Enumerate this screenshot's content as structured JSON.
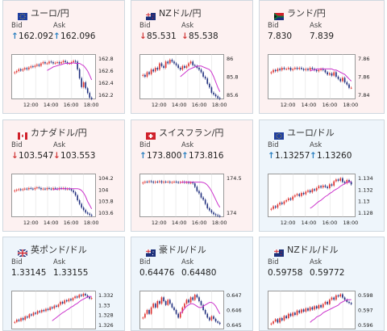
{
  "cards": [
    {
      "name": "eur-jpy",
      "title": "ユーロ/円",
      "flag": "eu",
      "bid": "162.092",
      "ask": "162.096",
      "bid_dir": "up",
      "ask_dir": "up",
      "bg": "#fdf1f1",
      "chart": {
        "ylim": [
          162.1,
          162.85
        ],
        "yticks": [
          "162.8",
          "162.6",
          "162.4",
          "162.2"
        ],
        "xticks": [
          "12:00",
          "14:00",
          "16:00",
          "18:00"
        ],
        "closes": [
          162.55,
          162.57,
          162.6,
          162.58,
          162.6,
          162.62,
          162.6,
          162.63,
          162.65,
          162.64,
          162.66,
          162.68,
          162.66,
          162.7,
          162.72,
          162.7,
          162.7,
          162.73,
          162.72,
          162.7,
          162.71,
          162.72,
          162.7,
          162.72,
          162.74,
          162.72,
          162.7,
          162.7,
          162.72,
          162.74,
          162.73,
          162.6,
          162.45,
          162.3,
          162.38,
          162.28,
          162.2,
          162.12,
          162.1
        ],
        "ma": [
          162.58,
          162.6,
          162.62,
          162.64,
          162.65,
          162.66,
          162.67,
          162.68,
          162.69,
          162.7,
          162.7,
          162.7,
          162.7,
          162.71,
          162.7,
          162.7,
          162.7,
          162.68,
          162.66,
          162.62,
          162.57,
          162.5,
          162.42
        ]
      }
    },
    {
      "name": "nzd-jpy",
      "title": "NZドル/円",
      "flag": "nz",
      "bid": "85.531",
      "ask": "85.538",
      "bid_dir": "down",
      "ask_dir": "down",
      "bg": "#fdf1f1",
      "chart": {
        "ylim": [
          85.55,
          86.05
        ],
        "yticks": [
          "86",
          "85.8",
          "85.6"
        ],
        "xticks": [
          "12:00",
          "14:00",
          "16:00",
          "18:00"
        ],
        "closes": [
          85.82,
          85.8,
          85.85,
          85.83,
          85.88,
          85.86,
          85.9,
          85.88,
          85.95,
          85.92,
          85.9,
          85.97,
          85.95,
          85.99,
          85.97,
          85.95,
          85.93,
          85.9,
          85.88,
          85.92,
          85.9,
          85.92,
          85.95,
          85.97,
          85.93,
          85.92,
          85.9,
          85.88,
          85.85,
          85.8,
          85.78,
          85.72,
          85.68,
          85.62,
          85.6,
          85.58,
          85.56,
          85.55
        ],
        "ma": [
          85.8,
          85.82,
          85.84,
          85.86,
          85.88,
          85.89,
          85.9,
          85.91,
          85.92,
          85.92,
          85.92,
          85.91,
          85.9,
          85.89,
          85.88,
          85.85,
          85.8,
          85.74,
          85.68,
          85.63
        ]
      }
    },
    {
      "name": "zar-jpy",
      "title": "ランド/円",
      "flag": "za",
      "bid": "7.830",
      "ask": "7.839",
      "bid_dir": "none",
      "ask_dir": "none",
      "bg": "#fdf1f1",
      "chart": {
        "ylim": [
          7.83,
          7.87
        ],
        "yticks": [
          "7.86",
          "7.86",
          "7.84"
        ],
        "xticks": [
          "12:00",
          "14:00",
          "16:00",
          "18:00"
        ],
        "closes": [
          7.854,
          7.856,
          7.855,
          7.857,
          7.856,
          7.858,
          7.857,
          7.857,
          7.858,
          7.856,
          7.857,
          7.858,
          7.857,
          7.858,
          7.857,
          7.856,
          7.857,
          7.856,
          7.858,
          7.857,
          7.856,
          7.855,
          7.856,
          7.857,
          7.856,
          7.854,
          7.852,
          7.853,
          7.851,
          7.854,
          7.85,
          7.848,
          7.846,
          7.849,
          7.845,
          7.843,
          7.84,
          7.84
        ],
        "ma": [
          7.855,
          7.856,
          7.856,
          7.857,
          7.857,
          7.857,
          7.857,
          7.857,
          7.857,
          7.857,
          7.857,
          7.856,
          7.856,
          7.855,
          7.854,
          7.853,
          7.852,
          7.85,
          7.848,
          7.846
        ]
      }
    },
    {
      "name": "cad-jpy",
      "title": "カナダドル/円",
      "flag": "ca",
      "bid": "103.547",
      "ask": "103.553",
      "bid_dir": "down",
      "ask_dir": "down",
      "bg": "#fdf1f1",
      "chart": {
        "ylim": [
          103.55,
          104.25
        ],
        "yticks": [
          "104.2",
          "104",
          "103.8",
          "103.6"
        ],
        "xticks": [
          "12:00",
          "14:00",
          "16:00",
          "18:00"
        ],
        "closes": [
          103.98,
          103.99,
          104.0,
          103.99,
          104.0,
          104.01,
          104.0,
          104.02,
          104.01,
          104.0,
          104.02,
          104.03,
          104.02,
          104.0,
          104.01,
          104.0,
          104.02,
          104.01,
          104.0,
          104.02,
          104.01,
          104.0,
          104.02,
          104.01,
          104.02,
          104.0,
          104.01,
          104.0,
          103.98,
          103.95,
          103.9,
          103.82,
          103.76,
          103.7,
          103.66,
          103.62,
          103.6,
          103.58,
          103.57
        ],
        "ma": [
          103.99,
          104.0,
          104.0,
          104.01,
          104.01,
          104.01,
          104.01,
          104.01,
          104.01,
          104.01,
          104.01,
          104.01,
          104.01,
          104.0,
          103.98,
          103.94,
          103.88,
          103.8,
          103.74,
          103.68
        ]
      }
    },
    {
      "name": "chf-jpy",
      "title": "スイスフラン/円",
      "flag": "ch",
      "bid": "173.800",
      "ask": "173.816",
      "bid_dir": "up",
      "ask_dir": "up",
      "bg": "#fdf1f1",
      "chart": {
        "ylim": [
          173.8,
          174.8
        ],
        "yticks": [
          "174.5",
          "174"
        ],
        "xticks": [
          "12:00",
          "14:00",
          "16:00",
          "18:00"
        ],
        "closes": [
          174.6,
          174.62,
          174.61,
          174.63,
          174.62,
          174.6,
          174.62,
          174.61,
          174.63,
          174.6,
          174.62,
          174.61,
          174.62,
          174.6,
          174.61,
          174.62,
          174.61,
          174.6,
          174.61,
          174.62,
          174.6,
          174.61,
          174.59,
          174.6,
          174.58,
          174.5,
          174.4,
          174.35,
          174.25,
          174.2,
          174.1,
          174.0,
          173.95,
          173.9,
          173.86,
          173.84,
          173.82,
          173.81
        ],
        "ma": [
          174.6,
          174.61,
          174.61,
          174.61,
          174.61,
          174.61,
          174.61,
          174.61,
          174.61,
          174.61,
          174.61,
          174.6,
          174.58,
          174.54,
          174.48,
          174.4,
          174.3,
          174.2,
          174.1,
          174.02
        ]
      }
    },
    {
      "name": "eur-usd",
      "title": "ユーロ/ドル",
      "flag": "eu",
      "bid": "1.13257",
      "ask": "1.13260",
      "bid_dir": "up",
      "ask_dir": "up",
      "bg": "#eef5fb",
      "chart": {
        "ylim": [
          1.1275,
          1.1345
        ],
        "yticks": [
          "1.134",
          "1.132",
          "1.13",
          "1.128"
        ],
        "xticks": [
          "12:00",
          "14:00",
          "16:00",
          "18:00"
        ],
        "closes": [
          1.1288,
          1.1292,
          1.129,
          1.1295,
          1.1298,
          1.1296,
          1.13,
          1.1302,
          1.1305,
          1.1303,
          1.1308,
          1.131,
          1.1312,
          1.1309,
          1.1314,
          1.1312,
          1.1316,
          1.1318,
          1.1315,
          1.132,
          1.1318,
          1.1322,
          1.1325,
          1.1323,
          1.1326,
          1.1324,
          1.1322,
          1.1328,
          1.1326,
          1.1333,
          1.1336,
          1.1334,
          1.1338,
          1.1332,
          1.133,
          1.1335,
          1.1332,
          1.1328
        ],
        "ma": [
          1.1289,
          1.1291,
          1.1294,
          1.1297,
          1.13,
          1.1302,
          1.1305,
          1.1308,
          1.131,
          1.1313,
          1.1315,
          1.1318,
          1.132,
          1.1322,
          1.1325,
          1.1327,
          1.1329,
          1.1331,
          1.1332,
          1.1332
        ]
      }
    },
    {
      "name": "gbp-usd",
      "title": "英ポンド/ドル",
      "flag": "uk",
      "bid": "1.33145",
      "ask": "1.33155",
      "bid_dir": "none",
      "ask_dir": "none",
      "bg": "#eef5fb",
      "chart": {
        "ylim": [
          1.3255,
          1.3325
        ],
        "yticks": [
          "1.332",
          "1.33",
          "1.328",
          "1.326"
        ],
        "xticks": [],
        "closes": [
          1.3268,
          1.3272,
          1.327,
          1.3275,
          1.3272,
          1.3278,
          1.3276,
          1.3282,
          1.328,
          1.3285,
          1.3283,
          1.3288,
          1.3286,
          1.329,
          1.3288,
          1.3292,
          1.329,
          1.3295,
          1.3293,
          1.3298,
          1.3296,
          1.33,
          1.3305,
          1.3302,
          1.3308,
          1.3306,
          1.331,
          1.3308,
          1.3312,
          1.3315,
          1.3313,
          1.3318,
          1.3316,
          1.332,
          1.3317,
          1.3314,
          1.3311,
          1.3312
        ],
        "ma": [
          1.327,
          1.3273,
          1.3276,
          1.3279,
          1.3282,
          1.3285,
          1.3287,
          1.329,
          1.3292,
          1.3295,
          1.3297,
          1.33,
          1.3302,
          1.3305,
          1.3308,
          1.331,
          1.3312,
          1.3314,
          1.3315,
          1.3315
        ]
      }
    },
    {
      "name": "aud-usd",
      "title": "豪ドル/ドル",
      "flag": "au",
      "bid": "0.64476",
      "ask": "0.64480",
      "bid_dir": "none",
      "ask_dir": "none",
      "bg": "#eef5fb",
      "chart": {
        "ylim": [
          0.6443,
          0.6473
        ],
        "yticks": [
          "0.647",
          "0.646",
          "0.645"
        ],
        "xticks": [],
        "closes": [
          0.6452,
          0.6455,
          0.6458,
          0.6455,
          0.646,
          0.6463,
          0.646,
          0.6465,
          0.6463,
          0.6468,
          0.6465,
          0.6462,
          0.6466,
          0.6463,
          0.646,
          0.6458,
          0.6455,
          0.6452,
          0.6456,
          0.646,
          0.6463,
          0.6466,
          0.6464,
          0.6468,
          0.6466,
          0.647,
          0.6468,
          0.6465,
          0.6462,
          0.6458,
          0.6455,
          0.6452,
          0.645,
          0.6453,
          0.6451,
          0.6449,
          0.6448,
          0.6447
        ],
        "ma": [
          0.6455,
          0.6457,
          0.6459,
          0.6461,
          0.6462,
          0.6463,
          0.6463,
          0.6462,
          0.6461,
          0.646,
          0.646,
          0.6461,
          0.6462,
          0.6463,
          0.6464,
          0.6464,
          0.6463,
          0.6461,
          0.6458,
          0.6455
        ]
      }
    },
    {
      "name": "nzd-usd",
      "title": "NZドル/ドル",
      "flag": "nz",
      "bid": "0.59758",
      "ask": "0.59772",
      "bid_dir": "none",
      "ask_dir": "none",
      "bg": "#eef5fb",
      "chart": {
        "ylim": [
          0.5953,
          0.5988
        ],
        "yticks": [
          "0.598",
          "0.597",
          "0.596"
        ],
        "xticks": [],
        "closes": [
          0.5958,
          0.596,
          0.5962,
          0.5959,
          0.5963,
          0.5961,
          0.5965,
          0.5963,
          0.5967,
          0.5965,
          0.5968,
          0.5966,
          0.597,
          0.5968,
          0.5971,
          0.5969,
          0.5972,
          0.597,
          0.5973,
          0.5971,
          0.5974,
          0.5972,
          0.5975,
          0.5973,
          0.5976,
          0.5978,
          0.5976,
          0.598,
          0.5982,
          0.598,
          0.5984,
          0.5983,
          0.5985,
          0.5982,
          0.598,
          0.5978,
          0.5977,
          0.5976
        ],
        "ma": [
          0.5959,
          0.5961,
          0.5962,
          0.5964,
          0.5965,
          0.5966,
          0.5968,
          0.5969,
          0.597,
          0.5971,
          0.5972,
          0.5973,
          0.5974,
          0.5975,
          0.5977,
          0.5978,
          0.5979,
          0.598,
          0.598,
          0.598
        ]
      }
    }
  ],
  "labels": {
    "bid": "Bid",
    "ask": "Ask"
  },
  "colors": {
    "up_arrow": "#2a7fc0",
    "down_arrow": "#d23b3b",
    "candle_up": "#e0322f",
    "candle_down": "#22317f",
    "ma": "#cc33cc"
  }
}
